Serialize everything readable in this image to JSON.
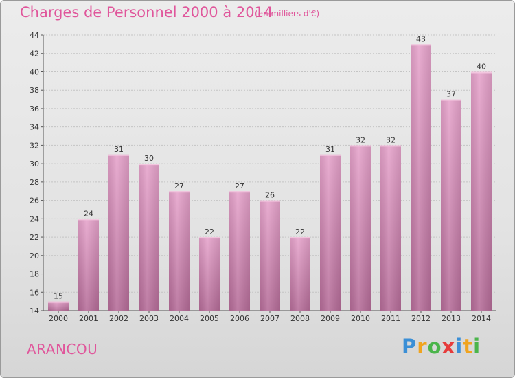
{
  "title": "Charges de Personnel 2000 à 2014",
  "subtitle": "(en milliers d'€)",
  "commune": "ARANCOU",
  "logo": {
    "letters": [
      "P",
      "r",
      "o",
      "x",
      "i",
      "t",
      "i"
    ],
    "colors": [
      "#3b8fd6",
      "#f0a41f",
      "#4bb54b",
      "#e63c3c",
      "#3b8fd6",
      "#f0a41f",
      "#4bb54b"
    ]
  },
  "colors": {
    "bar": "#d98ab8",
    "bar_dark": "#b36593",
    "text_accent": "#e0569b"
  },
  "chart_data": {
    "type": "bar",
    "categories": [
      "2000",
      "2001",
      "2002",
      "2003",
      "2004",
      "2005",
      "2006",
      "2007",
      "2008",
      "2009",
      "2010",
      "2011",
      "2012",
      "2013",
      "2014"
    ],
    "values": [
      15,
      24,
      31,
      30,
      27,
      22,
      27,
      26,
      22,
      31,
      32,
      32,
      43,
      37,
      40
    ],
    "title": "Charges de Personnel 2000 à 2014",
    "xlabel": "",
    "ylabel": "",
    "ylim": [
      14,
      44
    ],
    "yticks": [
      14,
      16,
      18,
      20,
      22,
      24,
      26,
      28,
      30,
      32,
      34,
      36,
      38,
      40,
      42,
      44
    ],
    "grid": true,
    "legend": "none"
  }
}
